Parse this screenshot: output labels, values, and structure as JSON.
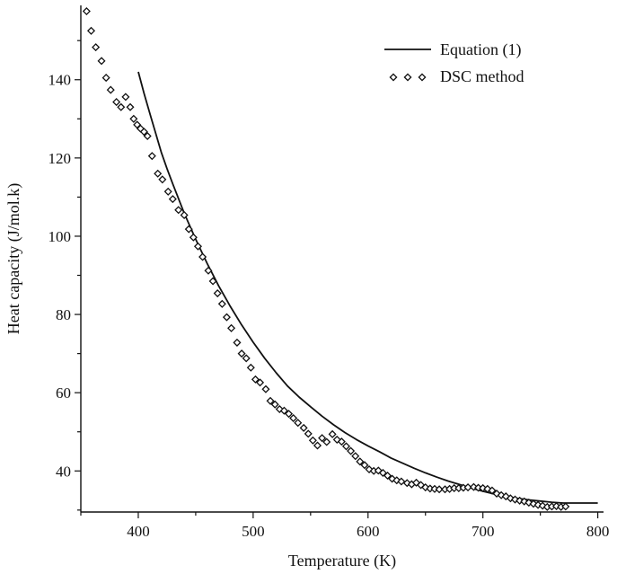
{
  "chart_data": {
    "type": "scatter",
    "xlabel": "Temperature (K)",
    "ylabel": "Heat capacity (J/mol.k)",
    "xlim": [
      350,
      805
    ],
    "ylim": [
      29.5,
      159
    ],
    "x_ticks": [
      400,
      500,
      600,
      700,
      800
    ],
    "y_ticks": [
      40,
      60,
      80,
      100,
      120,
      140
    ],
    "legend_position": "top-right",
    "grid": false,
    "series": [
      {
        "name": "Equation (1)",
        "style": "line",
        "color": "#111111",
        "x": [
          400,
          405,
          410,
          415,
          420,
          425,
          430,
          440,
          450,
          460,
          470,
          480,
          490,
          500,
          510,
          520,
          530,
          540,
          550,
          560,
          570,
          580,
          590,
          600,
          610,
          620,
          630,
          640,
          650,
          660,
          670,
          680,
          690,
          700,
          710,
          720,
          730,
          740,
          750,
          760,
          770,
          780,
          790,
          800
        ],
        "y": [
          142,
          136.5,
          131.5,
          126.5,
          121.5,
          117.3,
          113.4,
          105.9,
          99.2,
          93.0,
          87.3,
          82.1,
          77.3,
          72.9,
          68.8,
          65.1,
          61.7,
          58.9,
          56.4,
          54.0,
          51.8,
          49.8,
          48.0,
          46.4,
          44.9,
          43.3,
          42.0,
          40.7,
          39.5,
          38.4,
          37.4,
          36.5,
          35.6,
          34.8,
          34.1,
          33.5,
          33.0,
          32.6,
          32.3,
          32.0,
          31.8,
          31.8,
          31.8,
          31.8
        ]
      },
      {
        "name": "DSC method",
        "style": "diamond-markers",
        "color": "#111111",
        "x": [
          355,
          359,
          363,
          368,
          372,
          376,
          381,
          385,
          389,
          393,
          396,
          399,
          402,
          405,
          408,
          412,
          417,
          421,
          426,
          430,
          435,
          440,
          444,
          448,
          452,
          456,
          461,
          465,
          469,
          473,
          477,
          481,
          486,
          490,
          494,
          498,
          502,
          506,
          511,
          515,
          519,
          523,
          527,
          531,
          535,
          539,
          544,
          548,
          552,
          556,
          560,
          564,
          569,
          573,
          577,
          581,
          585,
          589,
          593,
          597,
          601,
          605,
          609,
          613,
          617,
          621,
          625,
          629,
          634,
          638,
          642,
          646,
          650,
          654,
          658,
          662,
          667,
          671,
          675,
          679,
          683,
          687,
          692,
          696,
          700,
          704,
          708,
          712,
          716,
          720,
          724,
          728,
          732,
          736,
          740,
          744,
          748,
          752,
          756,
          760,
          764,
          768,
          772
        ],
        "y": [
          157.5,
          152.5,
          148.3,
          144.8,
          140.5,
          137.4,
          134.3,
          133.0,
          135.6,
          133.0,
          130.0,
          128.5,
          127.5,
          126.7,
          125.6,
          120.5,
          116.0,
          114.5,
          111.4,
          109.5,
          106.7,
          105.4,
          101.8,
          99.7,
          97.4,
          94.7,
          91.2,
          88.5,
          85.4,
          82.7,
          79.3,
          76.5,
          72.8,
          70.0,
          68.8,
          66.4,
          63.4,
          62.6,
          60.9,
          57.9,
          57.0,
          55.8,
          55.4,
          54.6,
          53.5,
          52.3,
          51.0,
          49.5,
          47.8,
          46.5,
          48.4,
          47.4,
          49.4,
          48.0,
          47.5,
          46.3,
          45.1,
          43.8,
          42.4,
          41.5,
          40.4,
          40.0,
          40.1,
          39.5,
          38.8,
          38.0,
          37.6,
          37.3,
          36.9,
          36.6,
          37.0,
          36.4,
          35.8,
          35.5,
          35.4,
          35.3,
          35.3,
          35.4,
          35.6,
          35.6,
          35.7,
          35.8,
          35.9,
          35.7,
          35.6,
          35.4,
          35.0,
          34.2,
          33.8,
          33.5,
          33.0,
          32.7,
          32.4,
          32.2,
          31.9,
          31.6,
          31.3,
          31.1,
          30.8,
          30.9,
          31.0,
          30.8,
          30.9
        ]
      }
    ]
  }
}
